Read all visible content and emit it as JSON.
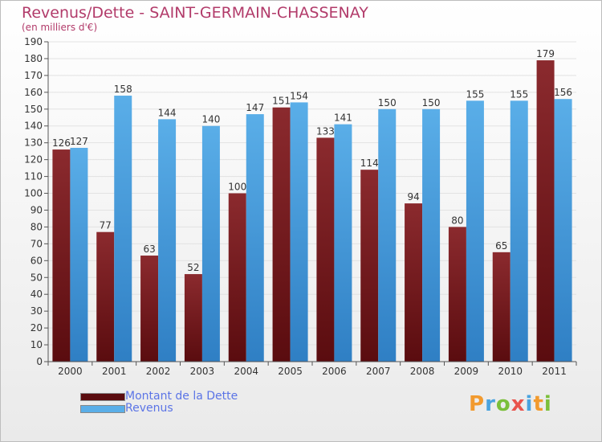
{
  "title": "Revenus/Dette - SAINT-GERMAIN-CHASSENAY",
  "subtitle": "(en milliers d'€)",
  "logo": "Proxiti",
  "logo_letters": [
    "P",
    "r",
    "o",
    "x",
    "i",
    "t",
    "i"
  ],
  "colors": {
    "debt_top": "#8b2a2e",
    "debt_bottom": "#5a0c0f",
    "revenue_top": "#5aaee8",
    "revenue_bottom": "#2f7fc4",
    "grid": "#e2e2e2",
    "axis": "#555555",
    "text": "#333333"
  },
  "chart_data": {
    "type": "bar",
    "categories": [
      "2000",
      "2001",
      "2002",
      "2003",
      "2004",
      "2005",
      "2006",
      "2007",
      "2008",
      "2009",
      "2010",
      "2011"
    ],
    "series": [
      {
        "name": "Montant de la Dette",
        "values": [
          126,
          77,
          63,
          52,
          100,
          151,
          133,
          114,
          94,
          80,
          65,
          179
        ]
      },
      {
        "name": "Revenus",
        "values": [
          127,
          158,
          144,
          140,
          147,
          154,
          141,
          150,
          150,
          155,
          155,
          156
        ]
      }
    ],
    "ylim": [
      0,
      190
    ],
    "yticks": [
      0,
      10,
      20,
      30,
      40,
      50,
      60,
      70,
      80,
      90,
      100,
      110,
      120,
      130,
      140,
      150,
      160,
      170,
      180,
      190
    ],
    "grid": true,
    "legend_position": "bottom-left"
  }
}
